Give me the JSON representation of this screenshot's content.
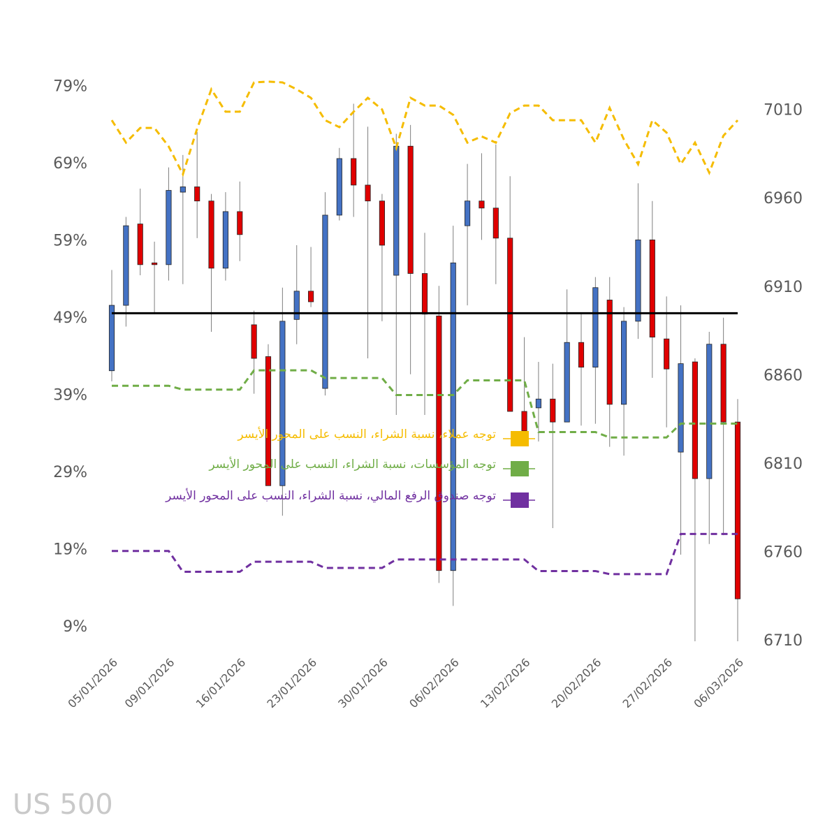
{
  "chart_data": {
    "type": "candlestick",
    "watermark": "US 500",
    "categories": [
      "05/01/2026",
      null,
      null,
      null,
      "09/01/2026",
      null,
      null,
      null,
      null,
      "16/01/2026",
      null,
      null,
      null,
      null,
      "23/01/2026",
      null,
      null,
      null,
      null,
      "30/01/2026",
      null,
      null,
      null,
      null,
      "06/02/2026",
      null,
      null,
      null,
      null,
      "13/02/2026",
      null,
      null,
      null,
      null,
      "20/02/2026",
      null,
      null,
      null,
      null,
      "27/02/2026",
      null,
      null,
      null,
      null,
      "06/03/2026"
    ],
    "candles": {
      "axis": "y2",
      "up_color": "#4472c4",
      "down_color": "#e00000",
      "open": [
        6863,
        6900,
        6946,
        6924,
        6923,
        6964,
        6967,
        6959,
        6921,
        6953,
        6889,
        6871,
        6798,
        6892,
        6908,
        6853,
        6951,
        6983,
        6968,
        6959,
        6917,
        6990,
        6918,
        6894,
        6750,
        6945,
        6959,
        6955,
        6938,
        6840,
        6842,
        6847,
        6834,
        6879,
        6865,
        6903,
        6844,
        6891,
        6937,
        6881,
        6817,
        6868,
        6802,
        6878,
        6834
      ],
      "high": [
        6920,
        6950,
        6966,
        6936,
        6978,
        6985,
        6998,
        6963,
        6964,
        6970,
        6897,
        6878,
        6910,
        6934,
        6933,
        6964,
        6989,
        7014,
        7001,
        6963,
        6997,
        7002,
        6941,
        6911,
        6945,
        6980,
        6986,
        6991,
        6973,
        6882,
        6868,
        6867,
        6909,
        6895,
        6916,
        6916,
        6899,
        6969,
        6959,
        6905,
        6900,
        6870,
        6885,
        6893,
        6847
      ],
      "low": [
        6857,
        6888,
        6917,
        6895,
        6914,
        6912,
        6938,
        6885,
        6914,
        6925,
        6850,
        6798,
        6781,
        6878,
        6899,
        6849,
        6948,
        6950,
        6870,
        6891,
        6838,
        6861,
        6838,
        6743,
        6730,
        6900,
        6937,
        6912,
        6840,
        6822,
        6823,
        6774,
        6834,
        6832,
        6833,
        6820,
        6815,
        6881,
        6859,
        6831,
        6759,
        6710,
        6765,
        6770,
        6710
      ],
      "close": [
        6900,
        6945,
        6923,
        6923,
        6965,
        6967,
        6959,
        6921,
        6953,
        6940,
        6870,
        6798,
        6891,
        6908,
        6902,
        6951,
        6983,
        6968,
        6959,
        6934,
        6990,
        6918,
        6895,
        6750,
        6924,
        6959,
        6955,
        6938,
        6840,
        6829,
        6847,
        6834,
        6879,
        6865,
        6910,
        6844,
        6891,
        6937,
        6882,
        6864,
        6867,
        6802,
        6878,
        6834,
        6734
      ]
    },
    "series": [
      {
        "name": "توجه عملاء، نسبة الشراء، النسب على المحور الأيسر",
        "color": "#f5bc00",
        "dashed": true,
        "values": [
          74.7,
          71.8,
          73.7,
          73.7,
          71.3,
          67.7,
          73.6,
          78.7,
          75.8,
          75.8,
          79.6,
          79.7,
          79.6,
          78.7,
          77.6,
          74.7,
          73.8,
          75.8,
          77.6,
          76.1,
          71.1,
          77.6,
          76.6,
          76.6,
          75.4,
          71.8,
          72.6,
          71.8,
          75.6,
          76.6,
          76.6,
          74.7,
          74.7,
          74.7,
          71.8,
          76.3,
          72.2,
          69.0,
          74.7,
          73.1,
          69.0,
          71.8,
          67.9,
          72.7,
          74.7
        ]
      },
      {
        "name": "توجه المؤسسات، نسبة الشراء، النسب على المحور الأيسر",
        "color": "#70ad47",
        "dashed": true,
        "values": [
          40.3,
          40.3,
          40.3,
          40.3,
          40.3,
          39.8,
          39.8,
          39.8,
          39.8,
          39.8,
          42.3,
          42.3,
          42.3,
          42.3,
          42.3,
          41.3,
          41.3,
          41.3,
          41.3,
          41.3,
          39.1,
          39.1,
          39.1,
          39.1,
          39.1,
          41.0,
          41.0,
          41.0,
          41.0,
          41.0,
          34.3,
          34.3,
          34.3,
          34.3,
          34.3,
          33.6,
          33.6,
          33.6,
          33.6,
          33.6,
          35.4,
          35.4,
          35.4,
          35.4,
          35.4
        ]
      },
      {
        "name": "توجه صندوق الرفع المالي، نسبة الشراء، النسب على المحور الأيسر",
        "color": "#7030a0",
        "dashed": true,
        "values": [
          18.9,
          18.9,
          18.9,
          18.9,
          18.9,
          16.2,
          16.2,
          16.2,
          16.2,
          16.2,
          17.5,
          17.5,
          17.5,
          17.5,
          17.5,
          16.7,
          16.7,
          16.7,
          16.7,
          16.7,
          17.8,
          17.8,
          17.8,
          17.8,
          17.8,
          17.8,
          17.8,
          17.8,
          17.8,
          17.8,
          16.3,
          16.3,
          16.3,
          16.3,
          16.3,
          15.9,
          15.9,
          15.9,
          15.9,
          15.9,
          21.1,
          21.1,
          21.1,
          21.1,
          21.1
        ]
      }
    ],
    "reference_line": {
      "value": 49.7,
      "color": "#000000"
    },
    "ylim": [
      7.2,
      80.5
    ],
    "yticks": [
      {
        "value": 9,
        "label": "9%"
      },
      {
        "value": 19,
        "label": "19%"
      },
      {
        "value": 29,
        "label": "29%"
      },
      {
        "value": 39,
        "label": "39%"
      },
      {
        "value": 49,
        "label": "49%"
      },
      {
        "value": 59,
        "label": "59%"
      },
      {
        "value": 69,
        "label": "69%"
      },
      {
        "value": 79,
        "label": "79%"
      }
    ],
    "y2lim": [
      6710,
      7030
    ],
    "y2ticks": [
      6710,
      6760,
      6810,
      6860,
      6910,
      6960,
      7010
    ],
    "legend": "center"
  }
}
